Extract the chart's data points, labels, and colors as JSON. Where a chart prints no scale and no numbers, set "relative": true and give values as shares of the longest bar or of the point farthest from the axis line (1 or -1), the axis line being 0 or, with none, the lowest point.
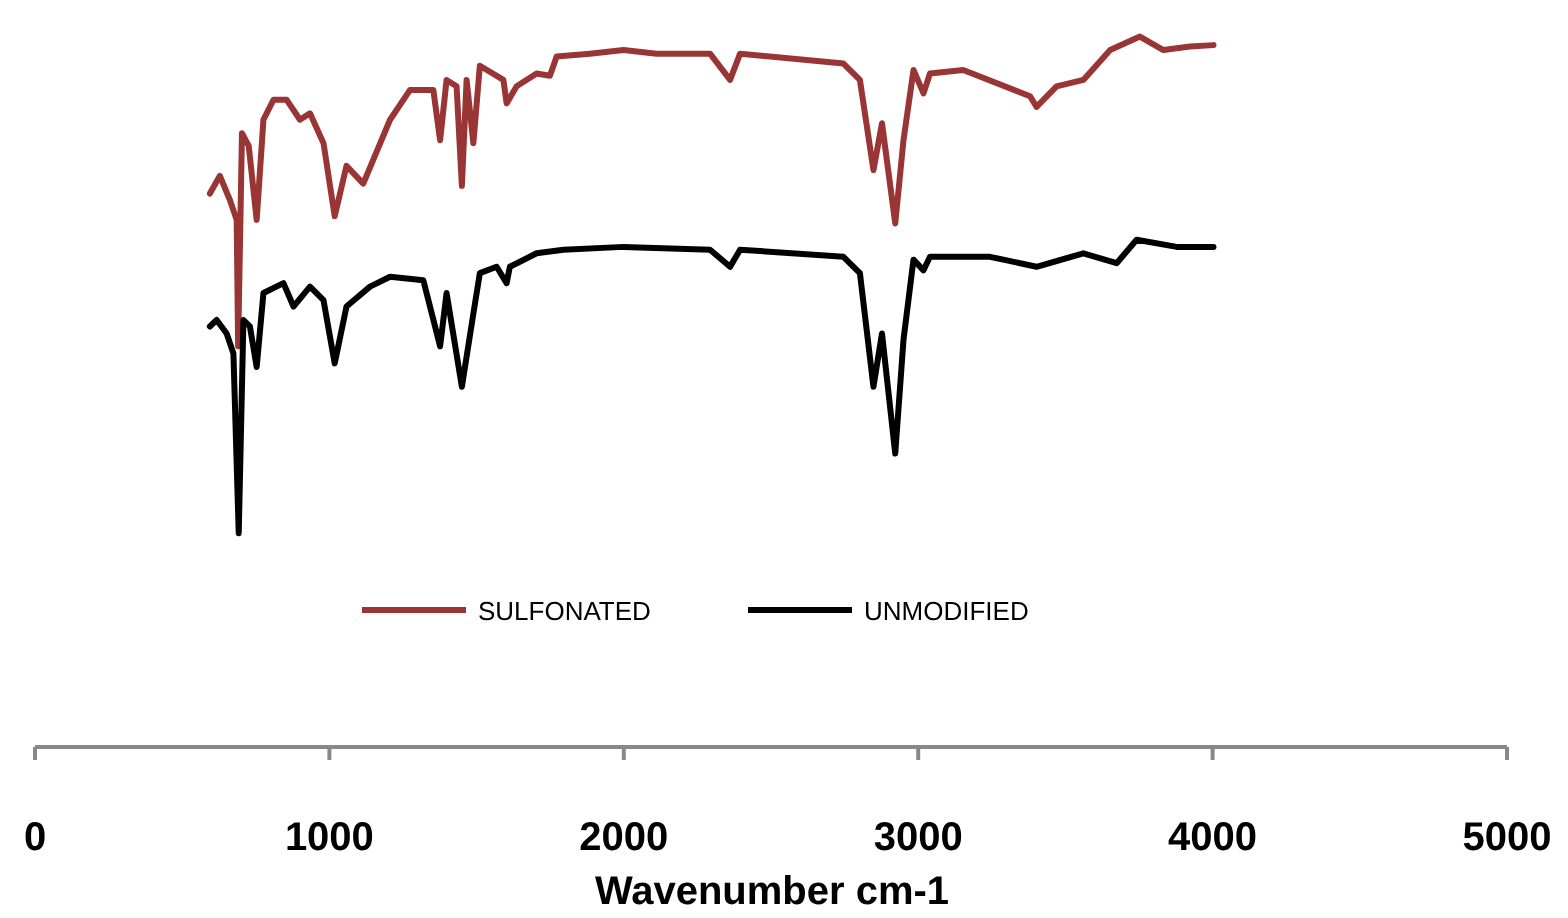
{
  "chart_data": {
    "type": "line",
    "relative": true,
    "xlabel": "Wavenumber cm-1",
    "xlim": [
      0,
      5000
    ],
    "xticks": [
      0,
      1000,
      2000,
      3000,
      4000,
      5000
    ],
    "legend": "bottom",
    "grid": false,
    "series": [
      {
        "name": "SULFONATED",
        "color": "#993535",
        "x": [
          594,
          628,
          662,
          685,
          690,
          703,
          726,
          753,
          776,
          810,
          855,
          900,
          934,
          980,
          1018,
          1058,
          1115,
          1206,
          1274,
          1353,
          1376,
          1398,
          1432,
          1450,
          1466,
          1489,
          1511,
          1591,
          1602,
          1636,
          1704,
          1749,
          1772,
          1885,
          1999,
          2111,
          2293,
          2361,
          2395,
          2746,
          2802,
          2848,
          2877,
          2922,
          2950,
          2984,
          3018,
          3040,
          3153,
          3380,
          3402,
          3470,
          3561,
          3652,
          3753,
          3833,
          3923,
          4003
        ],
        "values": [
          0.779,
          0.804,
          0.77,
          0.742,
          0.564,
          0.864,
          0.846,
          0.742,
          0.883,
          0.911,
          0.911,
          0.883,
          0.892,
          0.85,
          0.747,
          0.818,
          0.793,
          0.883,
          0.925,
          0.925,
          0.854,
          0.939,
          0.93,
          0.79,
          0.939,
          0.85,
          0.959,
          0.939,
          0.906,
          0.93,
          0.948,
          0.945,
          0.972,
          0.976,
          0.981,
          0.976,
          0.976,
          0.939,
          0.976,
          0.962,
          0.939,
          0.812,
          0.878,
          0.737,
          0.854,
          0.953,
          0.92,
          0.948,
          0.953,
          0.916,
          0.901,
          0.93,
          0.939,
          0.981,
          1.0,
          0.981,
          0.986,
          0.988
        ]
      },
      {
        "name": "UNMODIFIED",
        "color": "#000000",
        "x": [
          594,
          617,
          651,
          674,
          692,
          708,
          730,
          753,
          776,
          844,
          878,
          934,
          980,
          1018,
          1058,
          1138,
          1206,
          1319,
          1376,
          1398,
          1450,
          1489,
          1511,
          1568,
          1602,
          1613,
          1704,
          1795,
          1999,
          2293,
          2361,
          2395,
          2746,
          2802,
          2848,
          2877,
          2922,
          2950,
          2984,
          3018,
          3040,
          3244,
          3402,
          3561,
          3674,
          3742,
          3878,
          4003
        ],
        "values": [
          0.592,
          0.601,
          0.582,
          0.554,
          0.301,
          0.601,
          0.592,
          0.535,
          0.639,
          0.653,
          0.62,
          0.648,
          0.629,
          0.54,
          0.62,
          0.648,
          0.662,
          0.657,
          0.564,
          0.639,
          0.507,
          0.61,
          0.667,
          0.676,
          0.653,
          0.676,
          0.695,
          0.7,
          0.704,
          0.7,
          0.676,
          0.7,
          0.69,
          0.667,
          0.507,
          0.582,
          0.413,
          0.573,
          0.686,
          0.671,
          0.69,
          0.69,
          0.676,
          0.695,
          0.681,
          0.714,
          0.704,
          0.704
        ]
      }
    ]
  }
}
